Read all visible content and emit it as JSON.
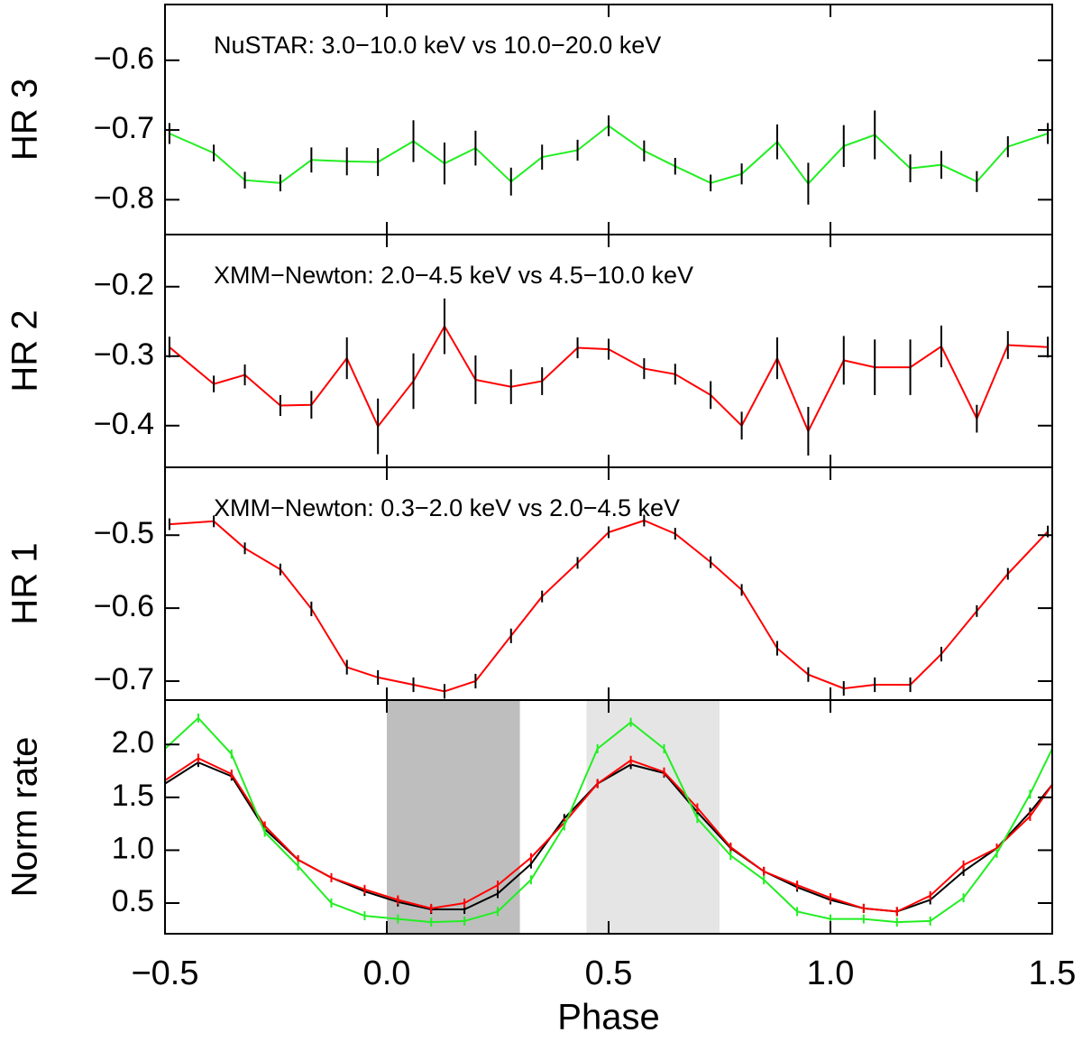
{
  "chart_data": [
    {
      "type": "line",
      "ylabel": "HR 3",
      "annotation": "NuSTAR: 3.0−10.0 keV vs 10.0−20.0 keV",
      "ylim": [
        -0.85,
        -0.52
      ],
      "yticks": [
        {
          "value": -0.6,
          "label": "−0.6"
        },
        {
          "value": -0.7,
          "label": "−0.7"
        },
        {
          "value": -0.8,
          "label": "−0.8"
        }
      ],
      "x": [
        -0.49,
        -0.39,
        -0.32,
        -0.24,
        -0.17,
        -0.09,
        -0.02,
        0.06,
        0.13,
        0.2,
        0.28,
        0.35,
        0.43,
        0.5,
        0.58,
        0.65,
        0.73,
        0.8,
        0.88,
        0.95,
        1.03,
        1.1,
        1.18,
        1.25,
        1.33,
        1.4,
        1.49
      ],
      "series": [
        {
          "color": "#22ee22",
          "values": [
            -0.705,
            -0.733,
            -0.772,
            -0.776,
            -0.743,
            -0.745,
            -0.746,
            -0.716,
            -0.748,
            -0.726,
            -0.774,
            -0.739,
            -0.729,
            -0.694,
            -0.73,
            -0.752,
            -0.776,
            -0.763,
            -0.717,
            -0.777,
            -0.723,
            -0.707,
            -0.755,
            -0.75,
            -0.774,
            -0.724,
            -0.705
          ],
          "errors": [
            0.015,
            0.012,
            0.012,
            0.012,
            0.018,
            0.02,
            0.02,
            0.03,
            0.03,
            0.025,
            0.02,
            0.018,
            0.015,
            0.015,
            0.015,
            0.012,
            0.012,
            0.015,
            0.025,
            0.03,
            0.03,
            0.035,
            0.02,
            0.02,
            0.015,
            0.015,
            0.015
          ]
        }
      ]
    },
    {
      "type": "line",
      "ylabel": "HR 2",
      "annotation": "XMM−Newton: 2.0−4.5 keV vs 4.5−10.0 keV",
      "ylim": [
        -0.46,
        -0.125
      ],
      "yticks": [
        {
          "value": -0.2,
          "label": "−0.2"
        },
        {
          "value": -0.3,
          "label": "−0.3"
        },
        {
          "value": -0.4,
          "label": "−0.4"
        }
      ],
      "x": [
        -0.49,
        -0.39,
        -0.32,
        -0.24,
        -0.17,
        -0.09,
        -0.02,
        0.06,
        0.13,
        0.2,
        0.28,
        0.35,
        0.43,
        0.5,
        0.58,
        0.65,
        0.73,
        0.8,
        0.88,
        0.95,
        1.03,
        1.1,
        1.18,
        1.25,
        1.33,
        1.4,
        1.49
      ],
      "series": [
        {
          "color": "#ff0000",
          "values": [
            -0.287,
            -0.34,
            -0.327,
            -0.371,
            -0.37,
            -0.303,
            -0.401,
            -0.336,
            -0.257,
            -0.334,
            -0.344,
            -0.336,
            -0.288,
            -0.29,
            -0.318,
            -0.326,
            -0.356,
            -0.4,
            -0.303,
            -0.408,
            -0.306,
            -0.316,
            -0.316,
            -0.286,
            -0.39,
            -0.284,
            -0.287
          ],
          "errors": [
            0.015,
            0.012,
            0.015,
            0.015,
            0.02,
            0.03,
            0.04,
            0.04,
            0.04,
            0.035,
            0.025,
            0.02,
            0.015,
            0.015,
            0.015,
            0.015,
            0.02,
            0.02,
            0.03,
            0.035,
            0.035,
            0.04,
            0.04,
            0.03,
            0.02,
            0.02,
            0.015
          ]
        }
      ]
    },
    {
      "type": "line",
      "ylabel": "HR 1",
      "annotation": "XMM−Newton: 0.3−2.0 keV vs 2.0−4.5 keV",
      "ylim": [
        -0.726,
        -0.407
      ],
      "yticks": [
        {
          "value": -0.5,
          "label": "−0.5"
        },
        {
          "value": -0.6,
          "label": "−0.6"
        },
        {
          "value": -0.7,
          "label": "−0.7"
        }
      ],
      "x": [
        -0.49,
        -0.39,
        -0.32,
        -0.24,
        -0.17,
        -0.09,
        -0.02,
        0.06,
        0.13,
        0.2,
        0.28,
        0.35,
        0.43,
        0.5,
        0.58,
        0.65,
        0.73,
        0.8,
        0.88,
        0.95,
        1.03,
        1.1,
        1.18,
        1.25,
        1.33,
        1.4,
        1.49
      ],
      "series": [
        {
          "color": "#ff0000",
          "values": [
            -0.485,
            -0.481,
            -0.518,
            -0.547,
            -0.601,
            -0.681,
            -0.695,
            -0.705,
            -0.714,
            -0.7,
            -0.638,
            -0.584,
            -0.538,
            -0.496,
            -0.48,
            -0.498,
            -0.537,
            -0.575,
            -0.655,
            -0.691,
            -0.71,
            -0.705,
            -0.705,
            -0.663,
            -0.604,
            -0.553,
            -0.495
          ],
          "errors": [
            0.008,
            0.008,
            0.008,
            0.008,
            0.01,
            0.01,
            0.01,
            0.01,
            0.01,
            0.01,
            0.01,
            0.008,
            0.008,
            0.008,
            0.008,
            0.008,
            0.008,
            0.008,
            0.01,
            0.01,
            0.01,
            0.01,
            0.01,
            0.01,
            0.008,
            0.008,
            0.008
          ]
        }
      ]
    },
    {
      "type": "line",
      "ylabel": "Norm rate",
      "xlabel": "Phase",
      "xlim": [
        -0.5,
        1.5
      ],
      "xticks": [
        {
          "value": -0.5,
          "label": "−0.5"
        },
        {
          "value": 0,
          "label": "0.0"
        },
        0.5,
        {
          "value": 1,
          "label": "1.0"
        },
        1.5
      ],
      "ylim": [
        0.21,
        2.42
      ],
      "yticks": [
        {
          "value": 2,
          "label": "2.0"
        },
        1.5,
        {
          "value": 1,
          "label": "1.0"
        },
        0.5
      ],
      "shaded": [
        {
          "range": [
            0,
            0.3
          ],
          "color": "#bebebe"
        },
        {
          "range": [
            0.45,
            0.75
          ],
          "color": "#e5e5e5"
        }
      ],
      "x": [
        -0.5,
        -0.425,
        -0.35,
        -0.275,
        -0.2,
        -0.125,
        -0.05,
        0.025,
        0.1,
        0.175,
        0.25,
        0.325,
        0.4,
        0.475,
        0.55,
        0.625,
        0.7,
        0.775,
        0.85,
        0.925,
        1.0,
        1.075,
        1.15,
        1.225,
        1.3,
        1.375,
        1.45,
        1.5
      ],
      "series": [
        {
          "color": "#000000",
          "values": [
            1.63,
            1.83,
            1.7,
            1.2,
            0.91,
            0.74,
            0.61,
            0.51,
            0.44,
            0.44,
            0.59,
            0.87,
            1.3,
            1.63,
            1.81,
            1.73,
            1.36,
            1.02,
            0.8,
            0.65,
            0.53,
            0.45,
            0.42,
            0.53,
            0.8,
            1.02,
            1.36,
            1.62
          ]
        },
        {
          "color": "#ff0000",
          "values": [
            1.66,
            1.87,
            1.72,
            1.23,
            0.91,
            0.74,
            0.63,
            0.53,
            0.45,
            0.5,
            0.67,
            0.93,
            1.26,
            1.63,
            1.85,
            1.74,
            1.4,
            1.03,
            0.8,
            0.67,
            0.55,
            0.45,
            0.42,
            0.57,
            0.86,
            1.02,
            1.32,
            1.62
          ]
        },
        {
          "color": "#22ee22",
          "values": [
            1.96,
            2.25,
            1.91,
            1.17,
            0.85,
            0.5,
            0.38,
            0.35,
            0.32,
            0.33,
            0.42,
            0.72,
            1.23,
            1.96,
            2.21,
            1.96,
            1.3,
            0.95,
            0.72,
            0.42,
            0.35,
            0.35,
            0.32,
            0.33,
            0.55,
            0.97,
            1.53,
            1.96
          ]
        }
      ]
    }
  ]
}
